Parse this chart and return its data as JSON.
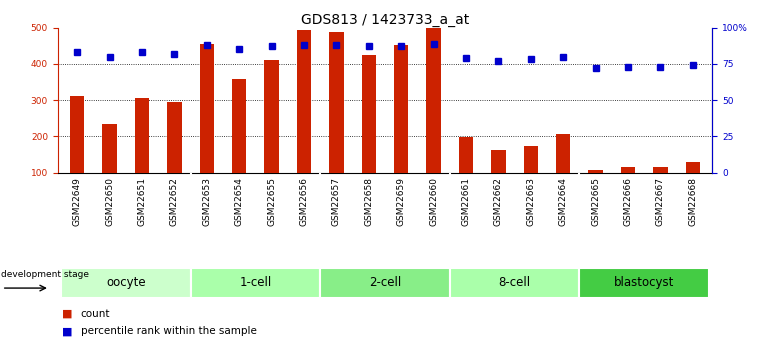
{
  "title": "GDS813 / 1423733_a_at",
  "samples": [
    "GSM22649",
    "GSM22650",
    "GSM22651",
    "GSM22652",
    "GSM22653",
    "GSM22654",
    "GSM22655",
    "GSM22656",
    "GSM22657",
    "GSM22658",
    "GSM22659",
    "GSM22660",
    "GSM22661",
    "GSM22662",
    "GSM22663",
    "GSM22664",
    "GSM22665",
    "GSM22666",
    "GSM22667",
    "GSM22668"
  ],
  "counts": [
    310,
    235,
    305,
    295,
    455,
    358,
    410,
    492,
    487,
    423,
    453,
    500,
    197,
    163,
    172,
    205,
    107,
    115,
    115,
    130
  ],
  "percentile": [
    83,
    80,
    83,
    82,
    88,
    85,
    87,
    88,
    88,
    87,
    87,
    89,
    79,
    77,
    78,
    80,
    72,
    73,
    73,
    74
  ],
  "groups": [
    {
      "label": "oocyte",
      "start": 0,
      "end": 4,
      "color": "#ccffcc"
    },
    {
      "label": "1-cell",
      "start": 4,
      "end": 8,
      "color": "#aaffaa"
    },
    {
      "label": "2-cell",
      "start": 8,
      "end": 12,
      "color": "#88ee88"
    },
    {
      "label": "8-cell",
      "start": 12,
      "end": 16,
      "color": "#aaffaa"
    },
    {
      "label": "blastocyst",
      "start": 16,
      "end": 20,
      "color": "#44cc44"
    }
  ],
  "bar_color": "#cc2200",
  "dot_color": "#0000cc",
  "left_ylim": [
    100,
    500
  ],
  "left_yticks": [
    100,
    200,
    300,
    400,
    500
  ],
  "right_ylim": [
    0,
    100
  ],
  "right_yticks": [
    0,
    25,
    50,
    75,
    100
  ],
  "right_yticklabels": [
    "0",
    "25",
    "50",
    "75",
    "100%"
  ],
  "grid_values": [
    200,
    300,
    400
  ],
  "bg_color": "#ffffff",
  "tick_label_color_left": "#cc2200",
  "tick_label_color_right": "#0000cc",
  "legend_count_label": "count",
  "legend_pct_label": "percentile rank within the sample",
  "dev_stage_label": "development stage",
  "title_fontsize": 10,
  "axis_fontsize": 6.5,
  "label_fontsize": 8,
  "group_label_fontsize": 8.5,
  "xtick_area_color": "#dddddd"
}
